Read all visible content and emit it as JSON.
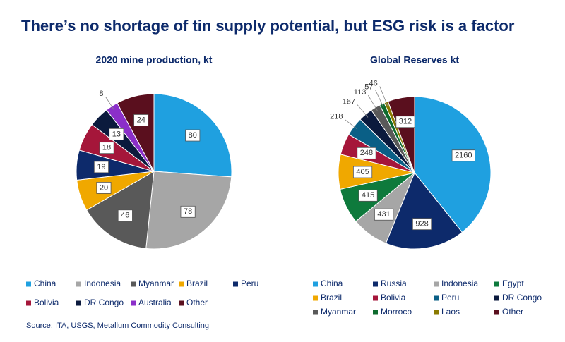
{
  "title": "There’s no shortage of tin supply potential, but ESG risk is a factor",
  "source": "Source: ITA, USGS, Metallum Commodity Consulting",
  "chart_data": [
    {
      "type": "pie",
      "title": "2020 mine production, kt",
      "categories": [
        "China",
        "Indonesia",
        "Myanmar",
        "Brazil",
        "Peru",
        "Bolivia",
        "DR Congo",
        "Australia",
        "Other"
      ],
      "values": [
        80,
        78,
        46,
        20,
        19,
        18,
        13,
        8,
        24
      ],
      "colors": [
        "#1fa0e0",
        "#a6a6a6",
        "#595959",
        "#f0a800",
        "#0d2a6b",
        "#a5163a",
        "#0b1a3d",
        "#8b2fc9",
        "#5a0f1e"
      ]
    },
    {
      "type": "pie",
      "title": "Global Reserves kt",
      "categories": [
        "China",
        "Russia",
        "Indonesia",
        "Egypt",
        "Brazil",
        "Bolivia",
        "Peru",
        "DR Congo",
        "Myanmar",
        "Morroco",
        "Laos",
        "Other"
      ],
      "values": [
        2160,
        928,
        431,
        415,
        405,
        248,
        218,
        167,
        113,
        57,
        46,
        312
      ],
      "colors": [
        "#1fa0e0",
        "#0d2a6b",
        "#a6a6a6",
        "#0e7a3c",
        "#f0a800",
        "#a5163a",
        "#0a5f86",
        "#0b1a3d",
        "#595959",
        "#0e6b2e",
        "#8a7a00",
        "#5a0f1e"
      ]
    }
  ]
}
